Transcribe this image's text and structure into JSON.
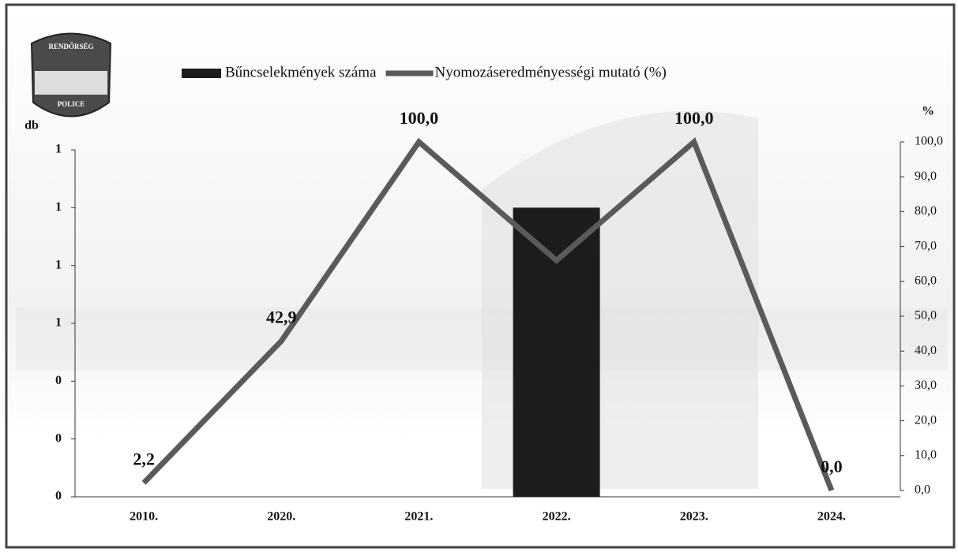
{
  "logo": {
    "top": "RENDŐRSÉG",
    "bottom": "POLICE"
  },
  "chart_data": {
    "type": "combo",
    "ylabel": "db",
    "y2label": "%",
    "categories": [
      "2010.",
      "2020.",
      "2021.",
      "2022.",
      "2023.",
      "2024."
    ],
    "series": [
      {
        "name": "Bűncselekmények száma",
        "type": "bar",
        "color": "#1c1c1c",
        "values": [
          0,
          0,
          0,
          1,
          0,
          0
        ]
      },
      {
        "name": "Nyomozáseredményességi mutató (%)",
        "type": "line",
        "axis": "y2",
        "color": "#5a5a5a",
        "values": [
          2.2,
          42.9,
          100.0,
          66,
          100.0,
          0.0
        ],
        "value_labels": [
          "2,2",
          "42,9",
          "100,0",
          null,
          "100,0",
          "0,0"
        ]
      }
    ],
    "ylim": [
      0,
      1.2
    ],
    "yticks": [
      {
        "value": 0,
        "label": "0"
      },
      {
        "value": 0.2,
        "label": "0"
      },
      {
        "value": 0.4,
        "label": "0"
      },
      {
        "value": 0.6,
        "label": "1"
      },
      {
        "value": 0.8,
        "label": "1"
      },
      {
        "value": 1.0,
        "label": "1"
      },
      {
        "value": 1.2,
        "label": "1"
      }
    ],
    "y2lim": [
      0,
      100
    ],
    "y2ticks": [
      {
        "value": 0,
        "label": "0,0"
      },
      {
        "value": 10,
        "label": "10,0"
      },
      {
        "value": 20,
        "label": "20,0"
      },
      {
        "value": 30,
        "label": "30,0"
      },
      {
        "value": 40,
        "label": "40,0"
      },
      {
        "value": 50,
        "label": "50,0"
      },
      {
        "value": 60,
        "label": "60,0"
      },
      {
        "value": 70,
        "label": "70,0"
      },
      {
        "value": 80,
        "label": "80,0"
      },
      {
        "value": 90,
        "label": "90,0"
      },
      {
        "value": 100,
        "label": "100,0"
      }
    ]
  }
}
